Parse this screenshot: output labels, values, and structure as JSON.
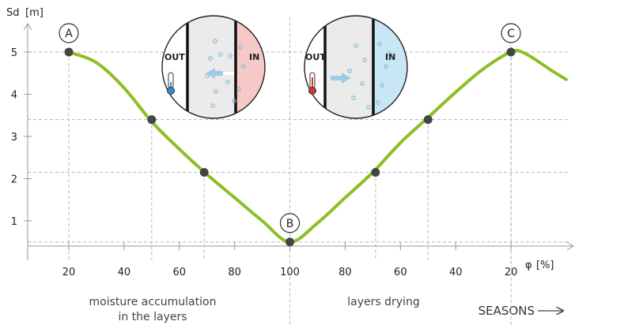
{
  "chart_data": {
    "type": "line",
    "ylabel": "Sd",
    "ylabel_unit": "[m]",
    "xlabel": "φ",
    "xlabel_unit": "[%]",
    "x_tick_labels": [
      "20",
      "40",
      "60",
      "80",
      "100",
      "80",
      "60",
      "40",
      "20"
    ],
    "y_tick_labels": [
      "1",
      "2",
      "3",
      "4",
      "5"
    ],
    "ylim": [
      0,
      5.5
    ],
    "x_positions": [
      20,
      40,
      60,
      80,
      100,
      120,
      140,
      160,
      180
    ],
    "curve": {
      "color": "#8cbf26",
      "x": [
        20,
        30,
        40,
        50,
        60,
        70,
        80,
        90,
        100,
        110,
        120,
        130,
        140,
        150,
        160,
        170,
        180,
        185,
        195,
        200
      ],
      "y": [
        5.0,
        4.75,
        4.15,
        3.35,
        2.7,
        2.1,
        1.55,
        1.0,
        0.5,
        0.95,
        1.55,
        2.15,
        2.85,
        3.45,
        4.05,
        4.6,
        5.0,
        4.97,
        4.55,
        4.35
      ]
    },
    "markers": [
      {
        "x": 20,
        "y": 5.0,
        "label": "A"
      },
      {
        "x": 50,
        "y": 3.4
      },
      {
        "x": 69,
        "y": 2.15
      },
      {
        "x": 100,
        "y": 0.5,
        "label": "B"
      },
      {
        "x": 131,
        "y": 2.15
      },
      {
        "x": 150,
        "y": 3.4
      },
      {
        "x": 180,
        "y": 5.0,
        "label": "C"
      }
    ],
    "annotations": {
      "left_caption_line1": "moisture accumulation",
      "left_caption_line2": "in the layers",
      "right_caption": "layers drying",
      "seasons": "SEASONS"
    },
    "insets": [
      {
        "out_label": "OUT",
        "in_label": "IN",
        "in_color": "#f6c8c8",
        "thermometer": "cold",
        "arrow": "in-to-out"
      },
      {
        "out_label": "OUT",
        "in_label": "IN",
        "in_color": "#c9e6f4",
        "thermometer": "hot",
        "arrow": "out-to-in"
      }
    ],
    "grid": "dashed guide lines"
  }
}
